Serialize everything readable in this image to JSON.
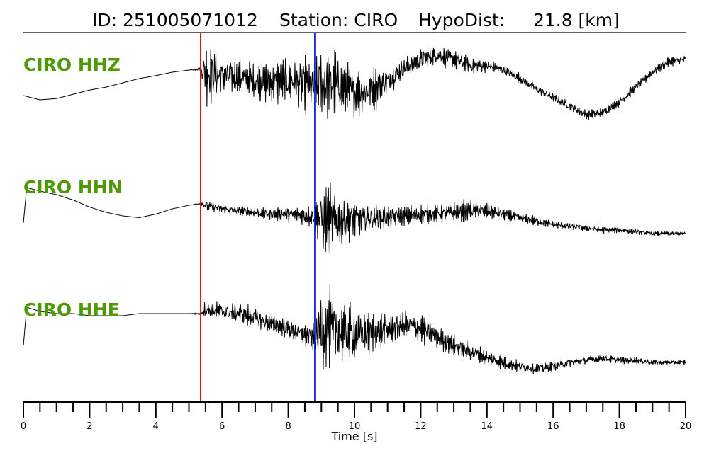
{
  "header": {
    "id_text": "ID: 251005071012",
    "station_text": "Station: CIRO",
    "dist_text": "HypoDist:     21.8 [km]"
  },
  "colors": {
    "p_pick": "#ff0000",
    "s_pick": "#0000cc",
    "trace": "#000000",
    "label": "#4e9a06"
  },
  "chart_data": {
    "type": "line",
    "xlabel": "Time [s]",
    "xlim": [
      0,
      20
    ],
    "x_major_ticks": [
      0,
      2,
      4,
      6,
      8,
      10,
      12,
      14,
      16,
      18,
      20
    ],
    "x_minor_step": 0.5,
    "picks": [
      {
        "phase": "P",
        "time": 5.35,
        "color": "#ff0000"
      },
      {
        "phase": "S",
        "time": 8.8,
        "color": "#0000cc"
      }
    ],
    "series": [
      {
        "name": "CIRO HHZ",
        "time": [
          0,
          0.5,
          1,
          1.5,
          2,
          2.5,
          3,
          3.5,
          4,
          4.5,
          5,
          5.35,
          5.5,
          6,
          6.5,
          7,
          7.5,
          8,
          8.5,
          8.8,
          9,
          9.5,
          10,
          10.5,
          11,
          11.5,
          12,
          12.5,
          13,
          13.5,
          14,
          14.5,
          15,
          15.5,
          16,
          16.5,
          17,
          17.5,
          18,
          18.5,
          19,
          19.5,
          20
        ],
        "trend": [
          -0.25,
          -0.35,
          -0.32,
          -0.22,
          -0.12,
          -0.05,
          0.05,
          0.15,
          0.22,
          0.3,
          0.35,
          0.38,
          0.3,
          0.2,
          0.2,
          0.1,
          0.05,
          0.1,
          0.0,
          -0.1,
          0.05,
          0.0,
          -0.2,
          -0.1,
          0.1,
          0.4,
          0.6,
          0.7,
          0.6,
          0.45,
          0.45,
          0.35,
          0.15,
          -0.1,
          -0.3,
          -0.5,
          -0.7,
          -0.65,
          -0.4,
          -0.05,
          0.3,
          0.55,
          0.6
        ],
        "noise": [
          0.0,
          0.0,
          0.0,
          0.0,
          0.0,
          0.0,
          0.0,
          0.0,
          0.0,
          0.0,
          0.0,
          0.05,
          0.7,
          0.45,
          0.35,
          0.35,
          0.45,
          0.5,
          0.55,
          0.6,
          0.85,
          0.65,
          0.55,
          0.45,
          0.3,
          0.25,
          0.25,
          0.2,
          0.2,
          0.18,
          0.15,
          0.12,
          0.1,
          0.1,
          0.1,
          0.1,
          0.1,
          0.1,
          0.1,
          0.1,
          0.1,
          0.1,
          0.1
        ]
      },
      {
        "name": "CIRO HHN",
        "time": [
          0,
          0.1,
          0.5,
          1,
          1.5,
          2,
          2.5,
          3,
          3.5,
          4,
          4.5,
          5,
          5.35,
          5.5,
          6,
          6.5,
          7,
          7.5,
          8,
          8.5,
          8.8,
          9,
          9.5,
          10,
          10.5,
          11,
          11.5,
          12,
          12.5,
          13,
          13.5,
          14,
          14.5,
          15,
          15.5,
          16,
          16.5,
          17,
          17.5,
          18,
          18.5,
          19,
          19.5,
          20
        ],
        "trend": [
          -0.3,
          0.7,
          0.6,
          0.5,
          0.35,
          0.15,
          0.0,
          -0.1,
          -0.15,
          -0.05,
          0.1,
          0.2,
          0.25,
          0.2,
          0.1,
          0.05,
          0.0,
          -0.05,
          -0.05,
          -0.1,
          -0.1,
          -0.2,
          -0.25,
          -0.2,
          -0.15,
          -0.15,
          -0.1,
          -0.05,
          -0.05,
          0.0,
          0.05,
          0.05,
          -0.05,
          -0.15,
          -0.25,
          -0.35,
          -0.4,
          -0.45,
          -0.5,
          -0.5,
          -0.55,
          -0.6,
          -0.6,
          -0.6
        ],
        "noise": [
          0.0,
          0.0,
          0.0,
          0.0,
          0.0,
          0.0,
          0.0,
          0.0,
          0.0,
          0.0,
          0.0,
          0.0,
          0.02,
          0.15,
          0.12,
          0.12,
          0.15,
          0.15,
          0.2,
          0.25,
          0.3,
          0.9,
          0.7,
          0.5,
          0.35,
          0.3,
          0.25,
          0.25,
          0.2,
          0.25,
          0.25,
          0.2,
          0.15,
          0.12,
          0.12,
          0.1,
          0.1,
          0.08,
          0.08,
          0.07,
          0.07,
          0.06,
          0.05,
          0.05
        ]
      },
      {
        "name": "CIRO HHE",
        "time": [
          0,
          0.1,
          0.5,
          1,
          1.5,
          2,
          2.5,
          3,
          3.5,
          4,
          4.5,
          5,
          5.35,
          5.5,
          6,
          6.5,
          7,
          7.5,
          8,
          8.5,
          8.8,
          9,
          9.5,
          10,
          10.5,
          11,
          11.5,
          12,
          12.5,
          13,
          13.5,
          14,
          14.5,
          15,
          15.5,
          16,
          16.5,
          17,
          17.5,
          18,
          18.5,
          19,
          19.5,
          20
        ],
        "trend": [
          -0.3,
          0.6,
          0.5,
          0.45,
          0.45,
          0.4,
          0.4,
          0.4,
          0.45,
          0.45,
          0.45,
          0.45,
          0.45,
          0.55,
          0.5,
          0.45,
          0.35,
          0.2,
          0.1,
          -0.05,
          -0.15,
          0.1,
          0.05,
          -0.05,
          0.0,
          0.05,
          0.2,
          0.1,
          -0.1,
          -0.3,
          -0.45,
          -0.6,
          -0.7,
          -0.8,
          -0.85,
          -0.8,
          -0.7,
          -0.65,
          -0.6,
          -0.65,
          -0.65,
          -0.7,
          -0.7,
          -0.7
        ],
        "noise": [
          0.0,
          0.0,
          0.0,
          0.0,
          0.0,
          0.0,
          0.0,
          0.0,
          0.0,
          0.0,
          0.0,
          0.0,
          0.03,
          0.2,
          0.2,
          0.22,
          0.22,
          0.2,
          0.22,
          0.25,
          0.3,
          0.85,
          0.7,
          0.55,
          0.4,
          0.35,
          0.3,
          0.3,
          0.25,
          0.2,
          0.2,
          0.15,
          0.15,
          0.12,
          0.12,
          0.1,
          0.1,
          0.08,
          0.08,
          0.07,
          0.07,
          0.06,
          0.05,
          0.05
        ]
      }
    ]
  }
}
